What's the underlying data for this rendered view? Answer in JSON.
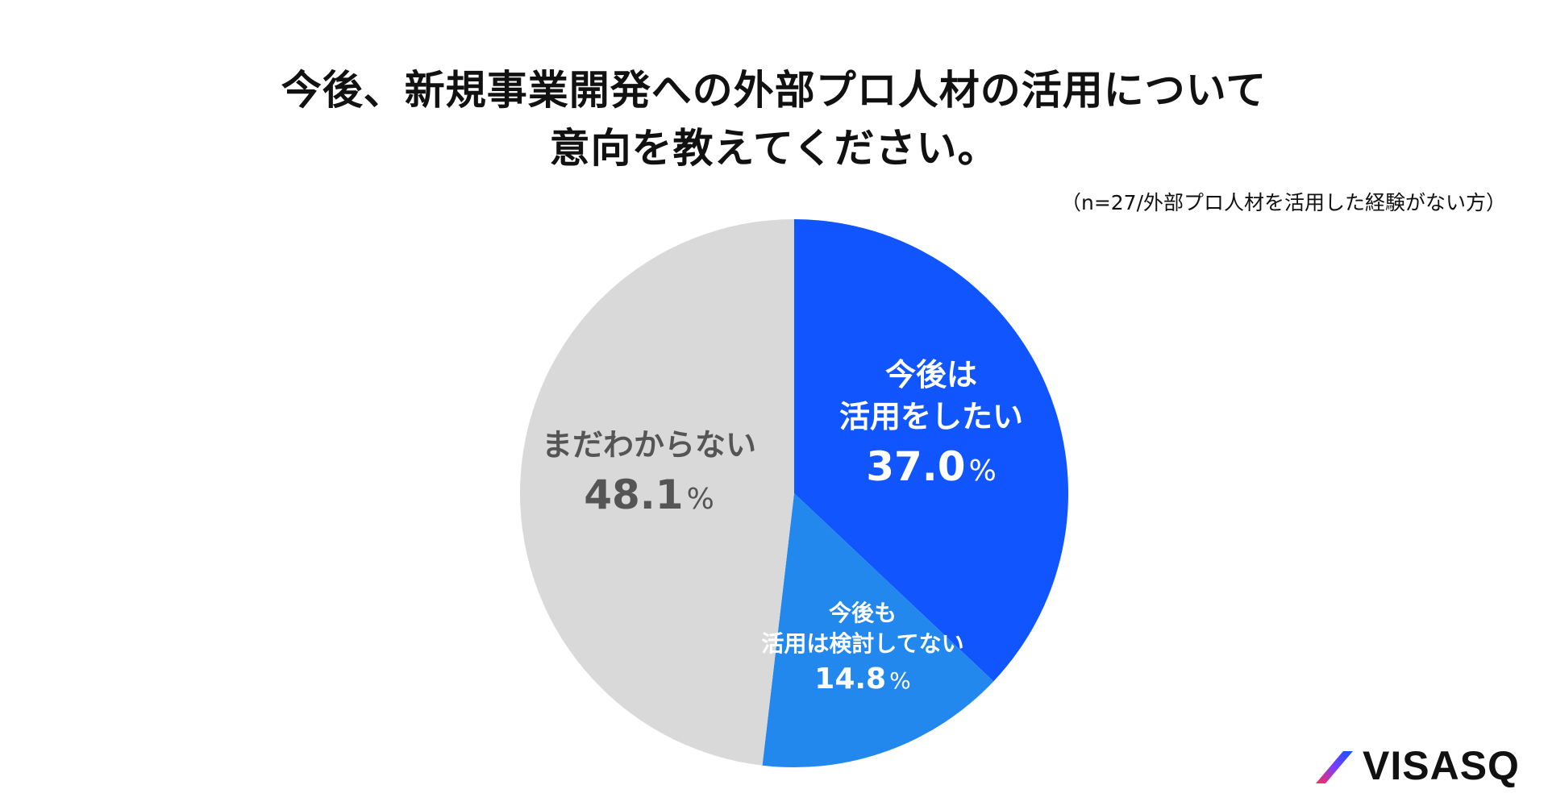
{
  "title_line1": "今後、新規事業開発への外部プロ人材の活用について",
  "title_line2": "意向を教えてください。",
  "note": "（n=27/外部プロ人材を活用した経験がない方）",
  "brand": "VISASQ",
  "chart_data": {
    "type": "pie",
    "slices": [
      {
        "label_lines": [
          "今後は",
          "活用をしたい"
        ],
        "value": 37.0,
        "value_text": "37.0",
        "unit": "%",
        "color": "#1155ff",
        "text_color": "#ffffff"
      },
      {
        "label_lines": [
          "今後も",
          "活用は検討してない"
        ],
        "value": 14.8,
        "value_text": "14.8",
        "unit": "%",
        "color": "#2288ee",
        "text_color": "#ffffff"
      },
      {
        "label_lines": [
          "まだわからない"
        ],
        "value": 48.1,
        "value_text": "48.1",
        "unit": "%",
        "color": "#d9d9d9",
        "text_color": "#555555"
      }
    ]
  }
}
